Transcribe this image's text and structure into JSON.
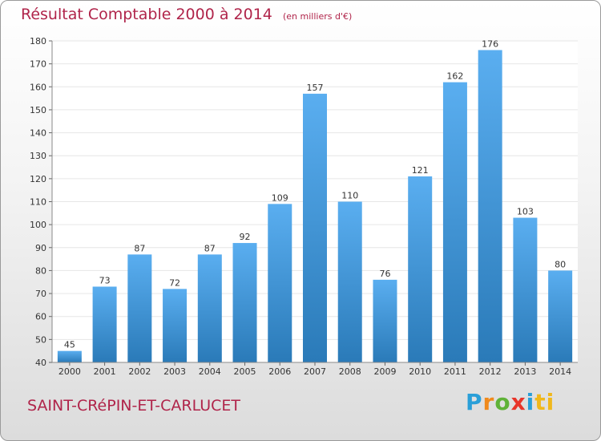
{
  "header": {
    "title": "Résultat Comptable 2000 à 2014",
    "unit": "(en milliers d'€)"
  },
  "footer": {
    "commune": "SAINT-CRéPIN-ET-CARLUCET",
    "logo": [
      "P",
      "r",
      "o",
      "x",
      "i",
      "ti"
    ]
  },
  "colors": {
    "title": "#b0244a",
    "bar_light": "#5aaef0",
    "bar_dark": "#2a7ab8",
    "grid": "#e6e6e6"
  },
  "chart_data": {
    "type": "bar",
    "title": "Résultat Comptable 2000 à 2014",
    "categories": [
      "2000",
      "2001",
      "2002",
      "2003",
      "2004",
      "2005",
      "2006",
      "2007",
      "2008",
      "2009",
      "2010",
      "2011",
      "2012",
      "2013",
      "2014"
    ],
    "values": [
      45,
      73,
      87,
      72,
      87,
      92,
      109,
      157,
      110,
      76,
      121,
      162,
      176,
      103,
      80
    ],
    "ylim": [
      40,
      180
    ],
    "yticks": [
      40,
      50,
      60,
      70,
      80,
      90,
      100,
      110,
      120,
      130,
      140,
      150,
      160,
      170,
      180
    ],
    "grid": true,
    "data_labels": true
  }
}
